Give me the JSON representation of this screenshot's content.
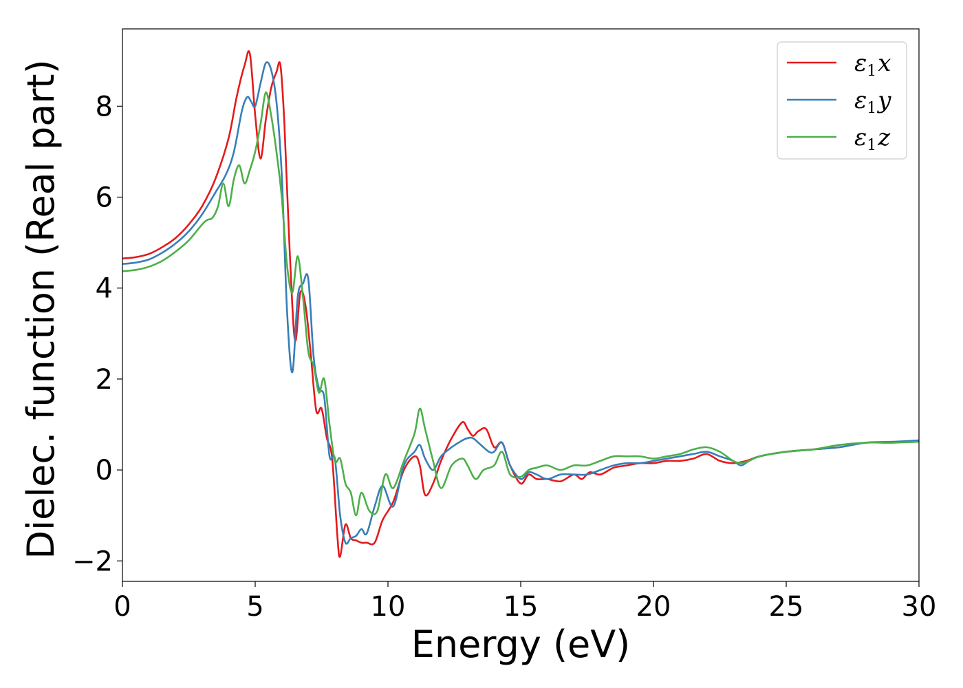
{
  "chart_data": {
    "type": "line",
    "xlabel": "Energy (eV)",
    "ylabel": "Dielec. function (Real part)",
    "xlim": [
      0,
      30
    ],
    "ylim": [
      -2.45,
      9.7
    ],
    "xticks": [
      0,
      5,
      10,
      15,
      20,
      25,
      30
    ],
    "yticks": [
      -2,
      0,
      2,
      4,
      6,
      8
    ],
    "xtick_labels": [
      "0",
      "5",
      "10",
      "15",
      "20",
      "25",
      "30"
    ],
    "ytick_labels": [
      "−2",
      "0",
      "2",
      "4",
      "6",
      "8"
    ],
    "grid": false,
    "legend_position": "top-right",
    "series": [
      {
        "name": "ε₁x",
        "legend": {
          "base": "ε",
          "sub": "1",
          "var": "x"
        },
        "color": "#e41a1c",
        "x": [
          0,
          0.5,
          1,
          1.5,
          2,
          2.5,
          3,
          3.5,
          4,
          4.3,
          4.6,
          4.8,
          5.0,
          5.2,
          5.4,
          5.6,
          5.8,
          5.95,
          6.1,
          6.3,
          6.5,
          6.7,
          6.9,
          7.1,
          7.3,
          7.5,
          7.7,
          7.9,
          8.1,
          8.2,
          8.4,
          8.6,
          8.8,
          9.0,
          9.2,
          9.5,
          9.8,
          10.2,
          10.6,
          11.0,
          11.2,
          11.4,
          11.7,
          12.0,
          12.4,
          12.8,
          13.0,
          13.2,
          13.4,
          13.7,
          14.0,
          14.3,
          14.6,
          15.0,
          15.3,
          15.6,
          16.0,
          16.5,
          17.0,
          17.3,
          17.6,
          18.0,
          18.5,
          19.0,
          19.5,
          20.0,
          20.5,
          21.0,
          21.5,
          22.0,
          22.5,
          23.0,
          23.5,
          24.0,
          25.0,
          26.0,
          27.0,
          28.0,
          29.0,
          30.0
        ],
        "y": [
          4.65,
          4.68,
          4.75,
          4.9,
          5.1,
          5.4,
          5.8,
          6.4,
          7.3,
          8.2,
          8.9,
          9.15,
          7.8,
          6.85,
          7.7,
          8.4,
          8.75,
          8.9,
          7.6,
          4.8,
          2.85,
          3.9,
          3.6,
          2.5,
          1.3,
          1.35,
          0.7,
          0.25,
          -1.5,
          -1.9,
          -1.2,
          -1.5,
          -1.55,
          -1.6,
          -1.6,
          -1.6,
          -1.1,
          -0.7,
          0.0,
          0.3,
          0.1,
          -0.55,
          -0.3,
          0.2,
          0.7,
          1.05,
          0.9,
          0.75,
          0.85,
          0.9,
          0.5,
          0.6,
          0.1,
          -0.3,
          -0.1,
          -0.2,
          -0.2,
          -0.25,
          -0.1,
          -0.2,
          -0.05,
          -0.1,
          0.05,
          0.1,
          0.15,
          0.15,
          0.2,
          0.2,
          0.25,
          0.35,
          0.2,
          0.15,
          0.2,
          0.3,
          0.4,
          0.45,
          0.5,
          0.6,
          0.6,
          0.65
        ]
      },
      {
        "name": "ε₁y",
        "legend": {
          "base": "ε",
          "sub": "1",
          "var": "y"
        },
        "color": "#377eb8",
        "x": [
          0,
          0.5,
          1,
          1.5,
          2,
          2.5,
          3,
          3.5,
          3.9,
          4.2,
          4.5,
          4.7,
          4.85,
          5.0,
          5.2,
          5.4,
          5.6,
          5.8,
          6.0,
          6.2,
          6.4,
          6.6,
          6.8,
          7.0,
          7.2,
          7.4,
          7.6,
          7.8,
          8.0,
          8.2,
          8.4,
          8.6,
          8.8,
          9.0,
          9.2,
          9.5,
          9.8,
          10.2,
          10.6,
          11.0,
          11.2,
          11.4,
          11.7,
          12.0,
          12.4,
          12.8,
          13.0,
          13.2,
          13.5,
          13.8,
          14.0,
          14.3,
          14.6,
          15.0,
          15.3,
          15.6,
          16.0,
          16.5,
          17.0,
          17.5,
          18.0,
          18.5,
          19.0,
          19.5,
          20.0,
          20.5,
          21.0,
          21.5,
          22.0,
          22.5,
          23.0,
          23.3,
          23.6,
          24.0,
          25.0,
          26.0,
          27.0,
          28.0,
          29.0,
          30.0
        ],
        "y": [
          4.53,
          4.56,
          4.63,
          4.78,
          4.98,
          5.25,
          5.62,
          6.1,
          6.5,
          7.0,
          7.9,
          8.2,
          8.1,
          8.0,
          8.5,
          8.95,
          8.8,
          8.1,
          6.5,
          3.5,
          2.15,
          3.8,
          4.1,
          4.2,
          2.5,
          1.8,
          1.6,
          0.3,
          0.25,
          -1.0,
          -1.6,
          -1.5,
          -1.45,
          -1.3,
          -1.4,
          -0.8,
          -0.35,
          -0.8,
          0.1,
          0.4,
          0.55,
          0.25,
          0.0,
          0.3,
          0.5,
          0.65,
          0.7,
          0.7,
          0.55,
          0.4,
          0.4,
          0.6,
          0.1,
          -0.2,
          -0.05,
          -0.1,
          -0.2,
          -0.1,
          -0.1,
          -0.1,
          0.0,
          0.1,
          0.15,
          0.15,
          0.2,
          0.25,
          0.3,
          0.35,
          0.4,
          0.3,
          0.2,
          0.1,
          0.2,
          0.3,
          0.4,
          0.45,
          0.5,
          0.6,
          0.62,
          0.65
        ]
      },
      {
        "name": "ε₁z",
        "legend": {
          "base": "ε",
          "sub": "1",
          "var": "z"
        },
        "color": "#4daf4a",
        "x": [
          0,
          0.5,
          1,
          1.5,
          2,
          2.5,
          3,
          3.2,
          3.4,
          3.6,
          3.8,
          4.0,
          4.2,
          4.4,
          4.6,
          4.8,
          5.0,
          5.2,
          5.4,
          5.6,
          5.8,
          6.0,
          6.2,
          6.4,
          6.6,
          6.8,
          7.0,
          7.2,
          7.4,
          7.6,
          7.8,
          8.0,
          8.2,
          8.4,
          8.6,
          8.8,
          9.0,
          9.3,
          9.6,
          9.9,
          10.2,
          10.6,
          11.0,
          11.2,
          11.4,
          11.7,
          12.0,
          12.4,
          12.8,
          13.0,
          13.3,
          13.6,
          14.0,
          14.3,
          14.6,
          15.0,
          15.3,
          15.6,
          16.0,
          16.5,
          17.0,
          17.5,
          18.0,
          18.5,
          19.0,
          19.5,
          20.0,
          20.5,
          21.0,
          21.5,
          22.0,
          22.5,
          23.0,
          23.3,
          23.6,
          24.0,
          25.0,
          26.0,
          27.0,
          28.0,
          29.0,
          30.0
        ],
        "y": [
          4.37,
          4.4,
          4.47,
          4.6,
          4.8,
          5.05,
          5.4,
          5.5,
          5.55,
          5.8,
          6.3,
          5.8,
          6.4,
          6.7,
          6.3,
          6.6,
          7.0,
          7.6,
          8.3,
          7.8,
          7.0,
          6.0,
          4.5,
          3.9,
          4.7,
          3.8,
          2.6,
          2.3,
          1.7,
          2.0,
          1.0,
          0.2,
          0.25,
          -0.3,
          -0.5,
          -1.0,
          -0.5,
          -0.9,
          -0.9,
          -0.1,
          -0.4,
          0.2,
          0.8,
          1.35,
          0.9,
          0.2,
          -0.4,
          0.1,
          0.25,
          0.1,
          -0.2,
          0.0,
          0.1,
          0.4,
          -0.1,
          -0.15,
          0.0,
          0.05,
          0.1,
          0.0,
          0.1,
          0.1,
          0.2,
          0.3,
          0.3,
          0.3,
          0.25,
          0.3,
          0.35,
          0.45,
          0.5,
          0.4,
          0.2,
          0.15,
          0.2,
          0.3,
          0.4,
          0.45,
          0.55,
          0.6,
          0.6,
          0.62
        ]
      }
    ]
  }
}
